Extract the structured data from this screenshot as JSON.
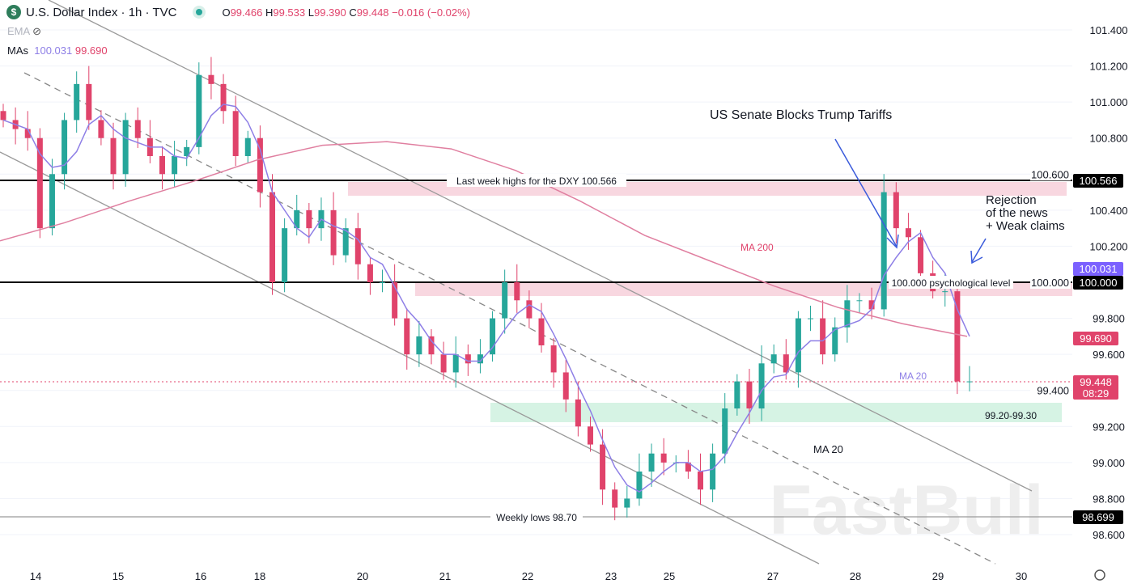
{
  "header": {
    "symbol": "U.S. Dollar Index · 1h · TVC",
    "logo": "$",
    "o_label": "O",
    "o": "99.466",
    "h_label": "H",
    "h": "99.533",
    "l_label": "L",
    "l": "99.390",
    "c_label": "C",
    "c": "99.448",
    "change": "−0.016 (−0.02%)",
    "ema": "EMA",
    "mas": "MAs",
    "ma20": "100.031",
    "ma200": "99.690"
  },
  "colors": {
    "up": "#26a69a",
    "down": "#e0436b",
    "ma20": "#8e7fe6",
    "ma200": "#e07fa0",
    "badge_black": "#000000",
    "badge_purple": "#7b61ff",
    "badge_red": "#e0436b"
  },
  "chart_data": {
    "type": "candlestick",
    "timeframe": "1h",
    "ylim": [
      98.5,
      101.5
    ],
    "y_ticks": [
      "101.400",
      "101.200",
      "101.000",
      "100.800",
      "100.600",
      "100.400",
      "100.200",
      "100.000",
      "99.800",
      "99.600",
      "99.400",
      "99.200",
      "99.000",
      "98.800",
      "98.600"
    ],
    "x_ticks": [
      "14",
      "15",
      "16",
      "18",
      "20",
      "21",
      "22",
      "23",
      "25",
      "27",
      "28",
      "29",
      "30"
    ],
    "closes": [
      100.9,
      100.85,
      100.8,
      100.3,
      100.6,
      100.9,
      101.1,
      100.9,
      100.8,
      100.6,
      100.9,
      100.8,
      100.7,
      100.6,
      100.7,
      100.75,
      101.15,
      101.1,
      100.95,
      100.7,
      100.8,
      100.5,
      100.0,
      100.3,
      100.4,
      100.3,
      100.4,
      100.15,
      100.3,
      100.1,
      100.0,
      100.0,
      99.8,
      99.6,
      99.7,
      99.6,
      99.5,
      99.6,
      99.55,
      99.6,
      99.8,
      100.0,
      99.9,
      99.8,
      99.65,
      99.5,
      99.35,
      99.2,
      99.1,
      98.85,
      98.75,
      98.8,
      98.95,
      99.05,
      99.0,
      99.0,
      98.95,
      98.85,
      99.05,
      99.3,
      99.45,
      99.3,
      99.55,
      99.6,
      99.5,
      99.8,
      99.8,
      99.6,
      99.75,
      99.9,
      99.9,
      99.85,
      100.5,
      100.3,
      100.25,
      100.05,
      99.95,
      99.95,
      99.45,
      99.45
    ],
    "ma200": [
      100.23,
      100.33,
      100.45,
      100.56,
      100.68,
      100.76,
      100.78,
      100.74,
      100.62,
      100.45,
      100.26,
      100.12,
      99.98,
      99.86,
      99.77,
      99.7
    ],
    "levels": [
      {
        "price": 100.566,
        "label": "Last week highs for the DXY 100.566",
        "badge": "100.566"
      },
      {
        "price": 100.0,
        "label": "100.000 psychological level",
        "badge": "100.000"
      },
      {
        "price": 98.7,
        "label": "Weekly lows 98.70",
        "badge": "98.699"
      }
    ],
    "zones": [
      {
        "from": 99.2,
        "to": 99.3,
        "label": "99.20-99.30"
      }
    ],
    "badges": {
      "ma20": "100.031",
      "ma200": "99.690",
      "last": "99.448",
      "countdown": "08:29"
    },
    "annotations": {
      "news": "US Senate Blocks Trump Tariffs",
      "rejection": [
        "Rejection",
        "of the news",
        "+ Weak claims"
      ],
      "ma200": "MA 200",
      "ma20_a": "MA 20",
      "ma20_b": "MA 20"
    },
    "watermark": "FastBull"
  }
}
